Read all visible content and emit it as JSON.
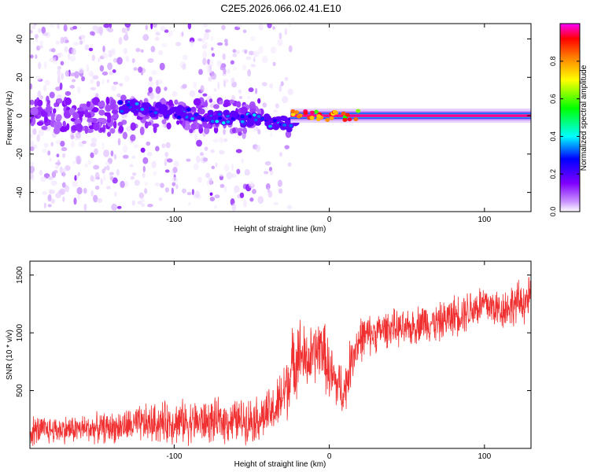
{
  "chart_data": [
    {
      "type": "heatmap",
      "title": "C2E5.2026.066.02.41.E10",
      "xlabel": "Height of straight line (km)",
      "ylabel": "Frequency (Hz)",
      "xlim": [
        -193,
        130
      ],
      "ylim": [
        -50,
        48
      ],
      "xticks": [
        -100,
        0,
        100
      ],
      "yticks": [
        -40,
        -20,
        0,
        20,
        40
      ],
      "colorbar": {
        "label": "Normalized spectral amplitude",
        "range": [
          0,
          1
        ],
        "ticks": [
          "0.0",
          "0.2",
          "0.4",
          "0.6",
          "0.8"
        ],
        "colors": [
          "#ffffff",
          "#cc99ff",
          "#8000ff",
          "#0000ff",
          "#00ffff",
          "#00ff00",
          "#ffff00",
          "#ff8000",
          "#ff0000",
          "#ff00ff"
        ]
      },
      "features": [
        {
          "name": "noise region",
          "x_range": [
            -193,
            -25
          ],
          "freq_spread_hz": 48
        },
        {
          "name": "signal line",
          "x_range": [
            -135,
            -20
          ],
          "freq_hz": [
            5,
            -5
          ],
          "amplitude": 0.3
        },
        {
          "name": "steady carrier",
          "x_range": [
            -25,
            130
          ],
          "freq_hz": 0,
          "amplitude": 0.95
        }
      ]
    },
    {
      "type": "line",
      "xlabel": "Height of straight line (km)",
      "ylabel": "SNR (10 * v/v)",
      "xlim": [
        -193,
        130
      ],
      "ylim": [
        0,
        1620
      ],
      "xticks": [
        -100,
        0,
        100
      ],
      "yticks": [
        500,
        1000,
        1500
      ],
      "color": "#f03030",
      "series": [
        {
          "name": "SNR",
          "x": [
            -193,
            -180,
            -160,
            -140,
            -120,
            -100,
            -80,
            -60,
            -45,
            -35,
            -30,
            -25,
            -20,
            -15,
            -10,
            -5,
            0,
            5,
            10,
            15,
            20,
            30,
            40,
            50,
            60,
            70,
            80,
            90,
            100,
            110,
            120,
            130
          ],
          "mean": [
            150,
            160,
            170,
            180,
            210,
            230,
            230,
            240,
            260,
            330,
            450,
            650,
            850,
            750,
            800,
            900,
            650,
            550,
            500,
            820,
            950,
            1000,
            1050,
            1020,
            1100,
            1080,
            1150,
            1200,
            1250,
            1200,
            1250,
            1300
          ],
          "amp": [
            120,
            110,
            110,
            120,
            150,
            170,
            170,
            170,
            180,
            200,
            260,
            300,
            300,
            250,
            250,
            250,
            260,
            220,
            200,
            200,
            180,
            150,
            140,
            140,
            150,
            150,
            160,
            170,
            170,
            160,
            170,
            180
          ]
        }
      ]
    }
  ]
}
